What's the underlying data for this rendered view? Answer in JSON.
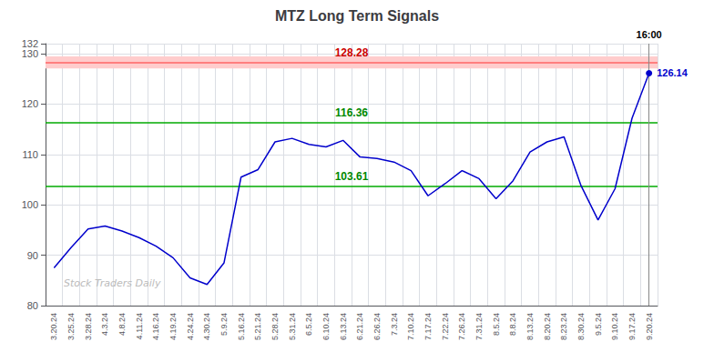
{
  "chart_data": {
    "type": "line",
    "title": "MTZ Long Term Signals",
    "categories": [
      "3.20.24",
      "3.25.24",
      "3.28.24",
      "4.3.24",
      "4.8.24",
      "4.11.24",
      "4.16.24",
      "4.19.24",
      "4.24.24",
      "4.30.24",
      "5.9.24",
      "5.16.24",
      "5.21.24",
      "5.28.24",
      "5.31.24",
      "6.5.24",
      "6.10.24",
      "6.13.24",
      "6.21.24",
      "6.26.24",
      "7.3.24",
      "7.10.24",
      "7.17.24",
      "7.22.24",
      "7.26.24",
      "7.31.24",
      "8.5.24",
      "8.8.24",
      "8.13.24",
      "8.20.24",
      "8.23.24",
      "8.30.24",
      "9.5.24",
      "9.10.24",
      "9.17.24",
      "9.20.24"
    ],
    "values": [
      87.5,
      91.5,
      95.2,
      95.8,
      94.8,
      93.5,
      91.8,
      89.5,
      85.5,
      84.2,
      88.5,
      105.5,
      107.0,
      112.5,
      113.2,
      112.0,
      111.5,
      112.8,
      109.5,
      109.2,
      108.5,
      106.8,
      101.8,
      104.2,
      106.8,
      105.2,
      101.2,
      104.8,
      110.5,
      112.5,
      113.5,
      103.8,
      97.0,
      103.2,
      117.2,
      126.14
    ],
    "color": "#0000cc",
    "ylim": [
      80,
      132
    ],
    "yticks": [
      80,
      90,
      100,
      110,
      120,
      130
    ],
    "grid": true,
    "band": {
      "from": 127.08,
      "to": 129.48,
      "color": "#ffcccc"
    },
    "hlines": [
      {
        "y": 128.28,
        "color": "#ff6666",
        "label": "128.28",
        "label_color": "#cc0000"
      },
      {
        "y": 116.36,
        "color": "#00aa00",
        "label": "116.36",
        "label_color": "#008800"
      },
      {
        "y": 103.61,
        "color": "#00aa00",
        "label": "103.61",
        "label_color": "#008800"
      }
    ],
    "annotations": [
      {
        "text": "126.14",
        "x": "9.20.24",
        "y": 126.14
      },
      {
        "text": "16:00",
        "x": "9.20.24"
      },
      {
        "text": "Stock Traders Daily"
      }
    ]
  }
}
